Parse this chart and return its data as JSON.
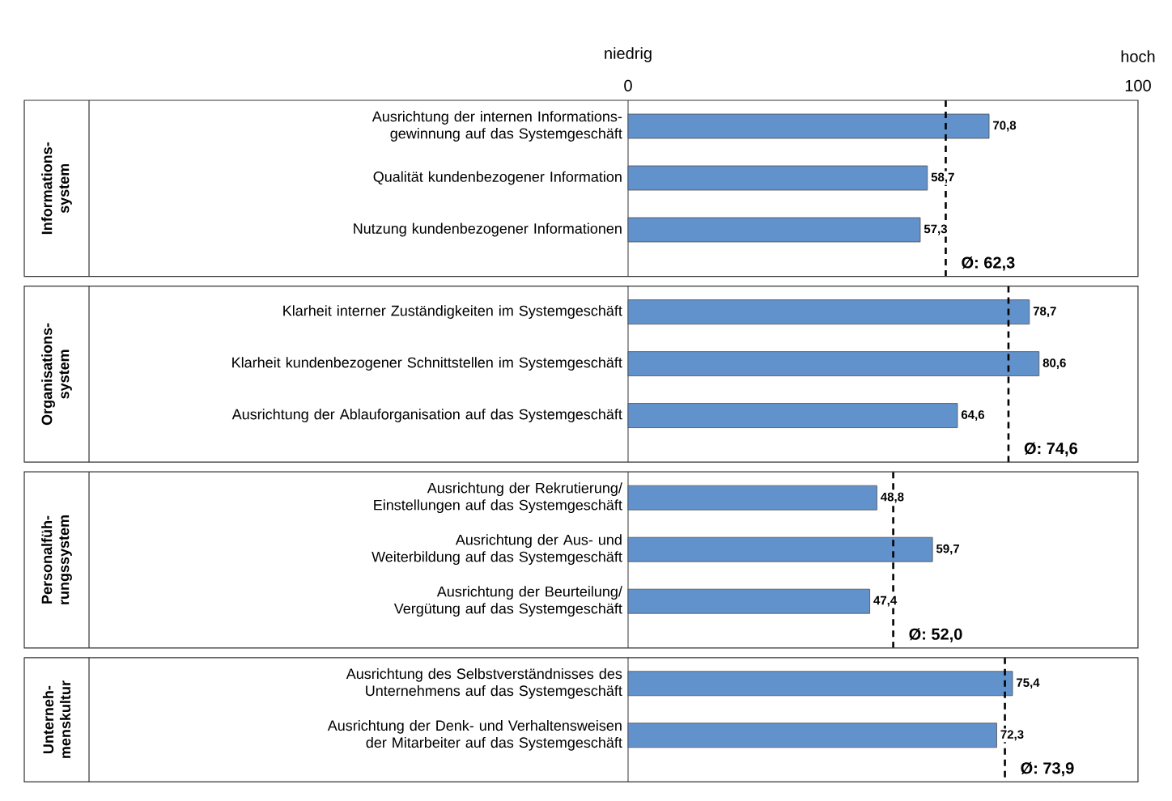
{
  "chart_data": [
    {
      "type": "bar",
      "orientation": "horizontal",
      "ylabel": "Informations- system",
      "categories": [
        "Ausrichtung der internen Informations- gewinnung auf das Systemgeschäft",
        "Qualität kundenbezogener Information",
        "Nutzung kundenbezogener Informationen"
      ],
      "values": [
        70.8,
        58.7,
        57.3
      ],
      "value_labels": [
        "70,8",
        "58,7",
        "57,3"
      ],
      "color": "#6292cc",
      "xlim": [
        0,
        100
      ],
      "xticks": [
        0,
        100
      ],
      "annotations": [
        "niedrig",
        "hoch"
      ],
      "ref_lines": [
        {
          "axis": "x",
          "value": 62.3,
          "label": "Ø: 62,3",
          "color": "#000000",
          "line_style": "dashed"
        }
      ]
    },
    {
      "type": "bar",
      "orientation": "horizontal",
      "ylabel": "Organisations- system",
      "categories": [
        "Klarheit interner Zuständigkeiten im Systemgeschäft",
        "Klarheit kundenbezogener Schnittstellen im Systemgeschäft",
        "Ausrichtung der Ablauforganisation auf das Systemgeschäft"
      ],
      "values": [
        78.7,
        80.6,
        64.6
      ],
      "value_labels": [
        "78,7",
        "80,6",
        "64,6"
      ],
      "color": "#6292cc",
      "xlim": [
        0,
        100
      ],
      "tick_labels": "y",
      "ref_lines": [
        {
          "axis": "x",
          "value": 74.6,
          "label": "Ø: 74,6",
          "color": "#000000",
          "line_style": "dashed"
        }
      ]
    },
    {
      "type": "bar",
      "orientation": "horizontal",
      "ylabel": "Personalfüh- rungssystem",
      "categories": [
        "Ausrichtung der Rekrutierung/ Einstellungen auf das Systemgeschäft",
        "Ausrichtung der Aus- und Weiterbildung auf das Systemgeschäft",
        "Ausrichtung der Beurteilung/ Vergütung auf das Systemgeschäft"
      ],
      "values": [
        48.8,
        59.7,
        47.4
      ],
      "value_labels": [
        "48,8",
        "59,7",
        "47,4"
      ],
      "color": "#6292cc",
      "xlim": [
        0,
        100
      ],
      "tick_labels": "y",
      "ref_lines": [
        {
          "axis": "x",
          "value": 52.0,
          "label": "Ø: 52,0",
          "color": "#000000",
          "line_style": "dashed"
        }
      ]
    },
    {
      "type": "bar",
      "orientation": "horizontal",
      "ylabel": "Unterneh- menskultur",
      "categories": [
        "Ausrichtung des Selbstverständnisses des Unternehmens auf das Systemgeschäft",
        "Ausrichtung der Denk- und Verhaltensweisen der Mitarbeiter auf das Systemgeschäft"
      ],
      "values": [
        75.4,
        72.3
      ],
      "value_labels": [
        "75,4",
        "72,3"
      ],
      "color": "#6292cc",
      "xlim": [
        0,
        100
      ],
      "tick_labels": "y",
      "ref_lines": [
        {
          "axis": "x",
          "value": 73.9,
          "label": "Ø: 73,9",
          "color": "#000000",
          "line_style": "dashed"
        }
      ]
    }
  ]
}
